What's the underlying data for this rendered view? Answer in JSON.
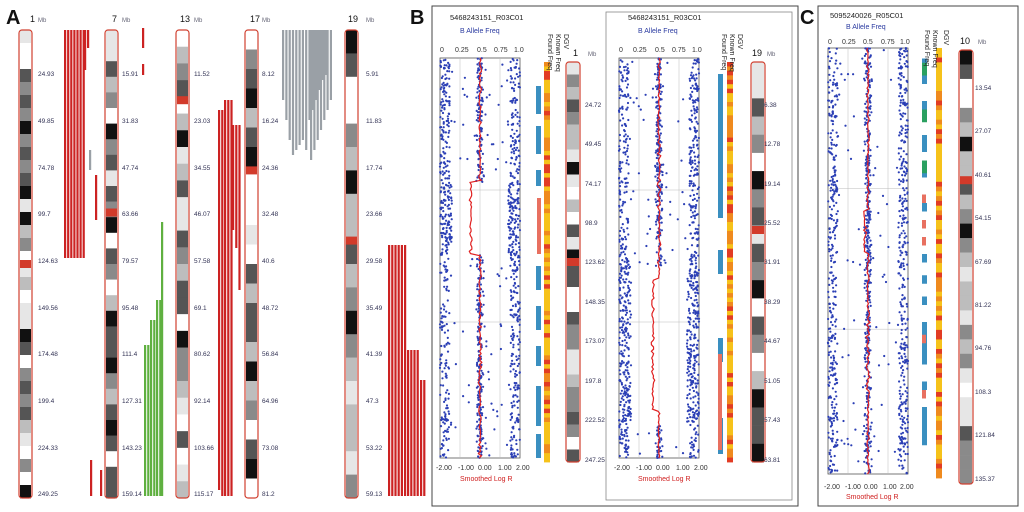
{
  "panels": {
    "A": "A",
    "B": "B",
    "C": "C"
  },
  "mb_label": "Mb",
  "A": {
    "chromosomes": [
      {
        "num": "1",
        "ticks": [
          "24.93",
          "49.85",
          "74.78",
          "99.7",
          "124.63",
          "149.56",
          "174.48",
          "199.4",
          "224.33",
          "249.25"
        ]
      },
      {
        "num": "7",
        "ticks": [
          "15.91",
          "31.83",
          "47.74",
          "63.66",
          "79.57",
          "95.48",
          "111.4",
          "127.31",
          "143.23",
          "159.14"
        ]
      },
      {
        "num": "13",
        "ticks": [
          "11.52",
          "23.03",
          "34.55",
          "46.07",
          "57.58",
          "69.1",
          "80.62",
          "92.14",
          "103.66",
          "115.17"
        ]
      },
      {
        "num": "17",
        "ticks": [
          "8.12",
          "16.24",
          "24.36",
          "32.48",
          "40.6",
          "48.72",
          "56.84",
          "64.96",
          "73.08",
          "81.2"
        ]
      },
      {
        "num": "19",
        "ticks": [
          "5.91",
          "11.83",
          "17.74",
          "23.66",
          "29.58",
          "35.49",
          "41.39",
          "47.3",
          "53.22",
          "59.13"
        ]
      }
    ]
  },
  "B": {
    "plots": [
      {
        "sample": "5468243151_R03C01",
        "chrom": "1",
        "ticks": [
          "24.72",
          "49.45",
          "74.17",
          "98.9",
          "123.62",
          "148.35",
          "173.07",
          "197.8",
          "222.52",
          "247.25"
        ]
      },
      {
        "sample": "5468243151_R03C01",
        "chrom": "19",
        "ticks": [
          "6.38",
          "12.78",
          "19.14",
          "25.52",
          "31.91",
          "38.29",
          "44.67",
          "51.05",
          "57.43",
          "63.81"
        ]
      }
    ]
  },
  "C": {
    "sample": "5095240026_R05C01",
    "chrom": "10",
    "ticks": [
      "13.54",
      "27.07",
      "40.61",
      "54.15",
      "67.69",
      "81.22",
      "94.76",
      "108.3",
      "121.84",
      "135.37"
    ]
  },
  "labels": {
    "baf": "B Allele Freq",
    "slr": "Smoothed Log R",
    "dgv": "DGV",
    "known_freq": "Known Freq",
    "found_freq": "Found Freq"
  },
  "axes": {
    "baf_ticks": [
      "0",
      "0.25",
      "0.5",
      "0.75",
      "1.0"
    ],
    "logr_ticks": [
      "-2.00",
      "-1.00",
      "0.00",
      "1.00",
      "2.00"
    ]
  },
  "colors": {
    "loss": "#cc2222",
    "gain": "#5fb040",
    "other": "#9aa0a6",
    "points": "#2b3fb5",
    "smooth": "#e02020",
    "dgv_blue": "#3a8fc0",
    "dgv_green": "#2aa060",
    "found": "#e87060",
    "border": "#d04030"
  }
}
